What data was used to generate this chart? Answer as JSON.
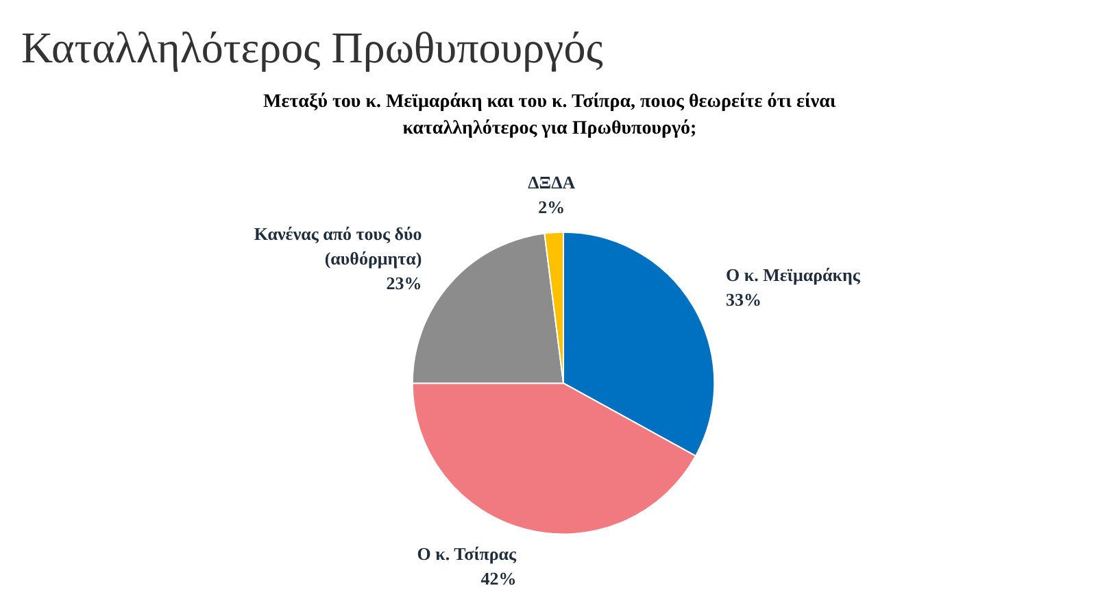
{
  "chart_data": {
    "type": "pie",
    "title": "Καταλληλότερος Πρωθυπουργός",
    "subtitle": "Μεταξύ του κ. Μεϊμαράκη και του κ. Τσίπρα, ποιος θεωρείτε ότι είναι καταλληλότερος για Πρωθυπουργό;",
    "categories": [
      "Ο κ. Μεϊμαράκης",
      "Ο κ. Τσίπρας",
      "Κανένας από τους δύο (αυθόρμητα)",
      "ΔΞΔΑ"
    ],
    "values": [
      33,
      42,
      23,
      2
    ],
    "value_labels": [
      "33%",
      "42%",
      "23%",
      "2%"
    ],
    "colors": [
      "#0070c0",
      "#f07a80",
      "#8c8c8c",
      "#ffc000"
    ],
    "legend": false
  }
}
